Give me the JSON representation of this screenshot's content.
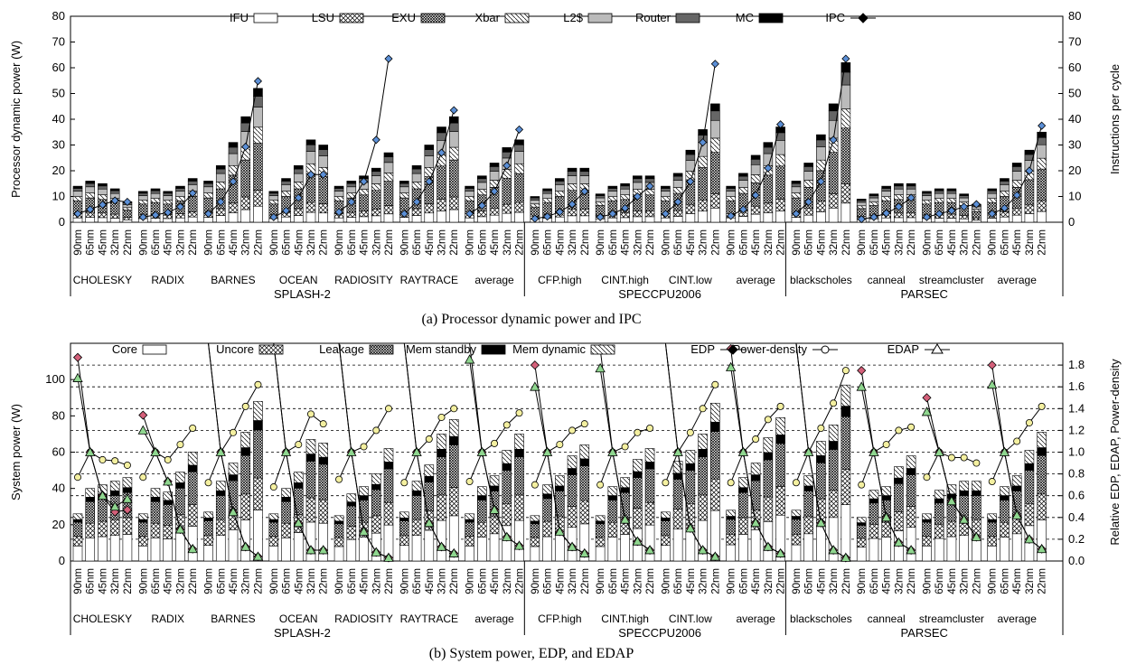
{
  "chart_data": [
    {
      "type": "stacked-bar+line",
      "ylabel": "Processor dynamic power (W)",
      "y2label": "Instructions per cycle",
      "ylim": [
        0,
        80
      ],
      "y2lim": [
        0,
        80
      ],
      "yticks": [
        "0",
        "10",
        "20",
        "30",
        "40",
        "50",
        "60",
        "70",
        "80"
      ],
      "y2ticks": [
        "0",
        "10",
        "20",
        "30",
        "40",
        "50",
        "60",
        "70",
        "80"
      ],
      "caption": "(a) Processor dynamic power and IPC",
      "nodes": [
        "90nm",
        "65nm",
        "45nm",
        "32nm",
        "22nm"
      ],
      "legend": [
        "IFU",
        "LSU",
        "EXU",
        "Xbar",
        "L2$",
        "Router",
        "MC",
        "IPC"
      ],
      "suites": [
        {
          "name": "SPLASH-2",
          "benchmarks": [
            {
              "name": "CHOLESKY",
              "total": [
                14,
                16,
                15,
                13,
                8
              ],
              "ipc": [
                3.3,
                5,
                6.8,
                8.4,
                7.9
              ]
            },
            {
              "name": "RADIX",
              "total": [
                12,
                13,
                12,
                14,
                17
              ],
              "ipc": [
                2,
                2.8,
                3.8,
                6,
                11.3
              ]
            },
            {
              "name": "BARNES",
              "total": [
                16,
                22,
                31,
                41,
                52
              ],
              "ipc": [
                3.3,
                7.9,
                15.8,
                29.3,
                54.8
              ]
            },
            {
              "name": "OCEAN",
              "total": [
                12,
                17,
                22,
                32,
                30
              ],
              "ipc": [
                2,
                4.5,
                9.5,
                18.5,
                18.5
              ]
            },
            {
              "name": "RADIOSITY",
              "total": [
                14,
                16,
                18,
                21,
                27
              ],
              "ipc": [
                4,
                7.9,
                15.8,
                32,
                63.5
              ]
            },
            {
              "name": "RAYTRACE",
              "total": [
                16,
                22,
                30,
                37,
                41
              ],
              "ipc": [
                3.3,
                7.9,
                15.8,
                27,
                43.5
              ]
            },
            {
              "name": "average",
              "total": [
                14,
                18,
                23,
                29,
                32
              ],
              "ipc": [
                3.3,
                6.5,
                12,
                22,
                36
              ]
            }
          ]
        },
        {
          "name": "SPECCPU2006",
          "benchmarks": [
            {
              "name": "CFP.high",
              "total": [
                10,
                13,
                17,
                21,
                21
              ],
              "ipc": [
                1.4,
                2.2,
                4,
                7,
                12
              ]
            },
            {
              "name": "CINT.high",
              "total": [
                11,
                14,
                15,
                18,
                18
              ],
              "ipc": [
                2,
                3.3,
                5.5,
                10,
                14
              ]
            },
            {
              "name": "CINT.low",
              "total": [
                14,
                19,
                28,
                36,
                46
              ],
              "ipc": [
                3.3,
                7.9,
                15.8,
                31,
                61.5
              ]
            },
            {
              "name": "average",
              "total": [
                14,
                19,
                26,
                31,
                37
              ],
              "ipc": [
                2.5,
                5,
                10.5,
                21,
                38
              ]
            }
          ]
        },
        {
          "name": "PARSEC",
          "benchmarks": [
            {
              "name": "blackscholes",
              "total": [
                16,
                23,
                34,
                46,
                62
              ],
              "ipc": [
                3.3,
                7.9,
                15.8,
                32,
                63.5
              ]
            },
            {
              "name": "canneal",
              "total": [
                9,
                11,
                14,
                15,
                15
              ],
              "ipc": [
                1.2,
                2,
                3.5,
                6,
                9.5
              ]
            },
            {
              "name": "streamcluster",
              "total": [
                12,
                13,
                13,
                11,
                7
              ],
              "ipc": [
                2,
                3.3,
                4.5,
                6,
                7
              ]
            },
            {
              "name": "average",
              "total": [
                13,
                17,
                23,
                28,
                35
              ],
              "ipc": [
                3.3,
                5.5,
                10.5,
                20,
                37.5
              ]
            }
          ]
        }
      ]
    },
    {
      "type": "stacked-bar+line",
      "ylabel": "System power (W)",
      "y2label": "Relative EDP, EDAP, Power-density",
      "ylim": [
        0,
        120
      ],
      "y2lim": [
        0,
        2.0
      ],
      "yticks": [
        "0",
        "20",
        "40",
        "60",
        "80",
        "100"
      ],
      "y2ticks": [
        "0.0",
        "0.2",
        "0.4",
        "0.6",
        "0.8",
        "1.0",
        "1.2",
        "1.4",
        "1.6",
        "1.8"
      ],
      "caption": "(b) System power, EDP, and EDAP",
      "nodes": [
        "90nm",
        "65nm",
        "45nm",
        "32nm",
        "22nm"
      ],
      "legend": [
        "Core",
        "Uncore",
        "Leakage",
        "Mem standby",
        "Mem dynamic",
        "EDP",
        "Power-density",
        "EDAP"
      ],
      "suites": [
        {
          "name": "SPLASH-2",
          "benchmarks": [
            {
              "name": "CHOLESKY",
              "total": [
                26,
                40,
                42,
                44,
                46
              ],
              "edp": [
                1.87,
                1.0,
                0.6,
                0.45,
                0.47
              ],
              "edap": [
                1.68,
                1.0,
                0.6,
                0.5,
                0.57
              ],
              "pd": [
                0.77,
                1.0,
                0.93,
                0.92,
                0.88
              ]
            },
            {
              "name": "RADIX",
              "total": [
                26,
                40,
                38,
                49,
                60
              ],
              "edp": [
                1.34,
                1.0,
                0.73,
                0.29,
                0.11
              ],
              "edap": [
                1.2,
                1.0,
                0.73,
                0.29,
                0.11
              ],
              "pd": [
                0.77,
                1.0,
                0.93,
                1.07,
                1.22
              ]
            },
            {
              "name": "BARNES",
              "total": [
                27,
                44,
                54,
                71,
                88
              ],
              "edp": [
                2.05,
                1.0,
                0.45,
                0.13,
                0.04
              ],
              "edap": [
                2.05,
                1.0,
                0.45,
                0.13,
                0.04
              ],
              "pd": [
                0.72,
                1.0,
                1.18,
                1.42,
                1.62
              ]
            },
            {
              "name": "OCEAN",
              "total": [
                26,
                40,
                49,
                67,
                65
              ],
              "edp": [
                2.05,
                1.0,
                0.35,
                0.1,
                0.1
              ],
              "edap": [
                2.05,
                1.0,
                0.35,
                0.1,
                0.1
              ],
              "pd": [
                0.68,
                1.0,
                1.07,
                1.35,
                1.26
              ]
            },
            {
              "name": "RADIOSITY",
              "total": [
                25,
                37,
                41,
                48,
                62
              ],
              "edp": [
                2.05,
                1.0,
                0.27,
                0.08,
                0.03
              ],
              "edap": [
                2.05,
                1.0,
                0.27,
                0.08,
                0.03
              ],
              "pd": [
                0.75,
                1.0,
                1.05,
                1.2,
                1.4
              ]
            },
            {
              "name": "RAYTRACE",
              "total": [
                27,
                44,
                53,
                70,
                78
              ],
              "edp": [
                2.05,
                1.0,
                0.35,
                0.13,
                0.07
              ],
              "edap": [
                2.05,
                1.0,
                0.35,
                0.13,
                0.07
              ],
              "pd": [
                0.72,
                1.0,
                1.12,
                1.32,
                1.4
              ]
            },
            {
              "name": "average",
              "total": [
                26,
                41,
                47,
                61,
                70
              ],
              "edp": [
                2.05,
                1.0,
                0.47,
                0.22,
                0.14
              ],
              "edap": [
                1.85,
                1.0,
                0.47,
                0.22,
                0.14
              ],
              "pd": [
                0.73,
                1.0,
                1.08,
                1.25,
                1.36
              ]
            }
          ]
        },
        {
          "name": "SPECCPU2006",
          "benchmarks": [
            {
              "name": "CFP.high",
              "total": [
                25,
                42,
                47,
                58,
                64
              ],
              "edp": [
                1.8,
                1.0,
                0.27,
                0.13,
                0.07
              ],
              "edap": [
                1.6,
                1.0,
                0.27,
                0.13,
                0.07
              ],
              "pd": [
                0.7,
                1.0,
                1.07,
                1.2,
                1.26
              ]
            },
            {
              "name": "CINT.high",
              "total": [
                25,
                41,
                46,
                56,
                62
              ],
              "edp": [
                1.95,
                1.0,
                0.38,
                0.18,
                0.1
              ],
              "edap": [
                1.77,
                1.0,
                0.38,
                0.18,
                0.1
              ],
              "pd": [
                0.7,
                1.0,
                1.05,
                1.18,
                1.22
              ]
            },
            {
              "name": "CINT.low",
              "total": [
                27,
                55,
                61,
                70,
                87
              ],
              "edp": [
                2.05,
                1.0,
                0.3,
                0.1,
                0.04
              ],
              "edap": [
                2.05,
                1.0,
                0.3,
                0.1,
                0.04
              ],
              "pd": [
                0.72,
                1.0,
                1.18,
                1.4,
                1.62
              ]
            },
            {
              "name": "average",
              "total": [
                28,
                46,
                54,
                68,
                79
              ],
              "edp": [
                1.95,
                1.0,
                0.35,
                0.13,
                0.07
              ],
              "edap": [
                1.78,
                1.0,
                0.35,
                0.13,
                0.07
              ],
              "pd": [
                0.72,
                1.0,
                1.12,
                1.3,
                1.42
              ]
            }
          ]
        },
        {
          "name": "PARSEC",
          "benchmarks": [
            {
              "name": "blackscholes",
              "total": [
                28,
                47,
                66,
                75,
                97
              ],
              "edp": [
                2.05,
                1.0,
                0.35,
                0.1,
                0.03
              ],
              "edap": [
                2.05,
                1.0,
                0.35,
                0.1,
                0.03
              ],
              "pd": [
                0.72,
                1.0,
                1.22,
                1.45,
                1.75
              ]
            },
            {
              "name": "canneal",
              "total": [
                24,
                39,
                41,
                52,
                58
              ],
              "edp": [
                1.75,
                1.0,
                0.4,
                0.17,
                0.1
              ],
              "edap": [
                1.6,
                1.0,
                0.4,
                0.17,
                0.1
              ],
              "pd": [
                0.7,
                1.0,
                1.07,
                1.2,
                1.23
              ]
            },
            {
              "name": "streamcluster",
              "total": [
                26,
                39,
                42,
                44,
                44
              ],
              "edp": [
                1.5,
                1.0,
                0.55,
                0.38,
                0.22
              ],
              "edap": [
                1.37,
                1.0,
                0.55,
                0.38,
                0.22
              ],
              "pd": [
                0.77,
                1.0,
                0.95,
                0.95,
                0.9
              ]
            },
            {
              "name": "average",
              "total": [
                26,
                41,
                47,
                61,
                71
              ],
              "edp": [
                1.8,
                1.0,
                0.42,
                0.2,
                0.11
              ],
              "edap": [
                1.62,
                1.0,
                0.42,
                0.2,
                0.11
              ],
              "pd": [
                0.73,
                1.0,
                1.1,
                1.27,
                1.42
              ]
            }
          ]
        }
      ]
    }
  ]
}
